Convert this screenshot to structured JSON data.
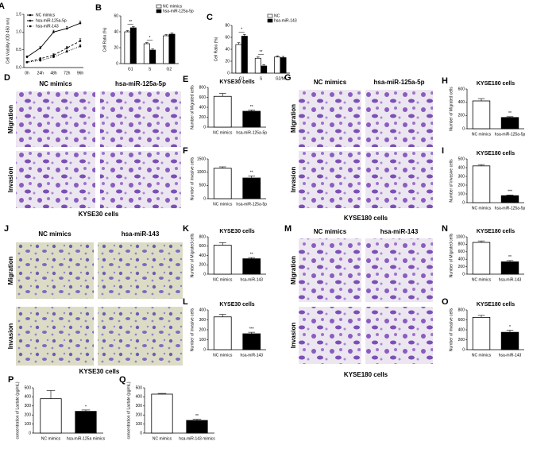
{
  "chart_data": [
    {
      "type": "line",
      "panel": "A",
      "y_label": "Cell Viability (OD 450 nm)",
      "categories": [
        "0h",
        "24h",
        "48h",
        "72h",
        "96h"
      ],
      "ylim": [
        0,
        1.5
      ],
      "yticks": [
        {
          "value": 0,
          "label": "0.0"
        },
        0.5,
        {
          "value": 1,
          "label": "1.0"
        },
        1.5
      ],
      "series": [
        {
          "name": "NC mimics",
          "color": "#000000",
          "dash": "solid",
          "values": [
            0.3,
            0.55,
            1.0,
            1.1,
            1.25
          ],
          "errors": [
            0.03,
            0.04,
            0.05,
            0.05,
            0.06
          ]
        },
        {
          "name": "hsa-miR-125a-5p",
          "color": "#000000",
          "dash": "dashed",
          "values": [
            0.15,
            0.25,
            0.35,
            0.55,
            0.75
          ],
          "errors": [
            0.02,
            0.03,
            0.04,
            0.05,
            0.06
          ]
        },
        {
          "name": "hsa-miR-143",
          "color": "#000000",
          "dash": "dotted",
          "values": [
            0.15,
            0.2,
            0.3,
            0.45,
            0.6
          ],
          "errors": [
            0.02,
            0.03,
            0.03,
            0.04,
            0.05
          ]
        }
      ]
    },
    {
      "type": "bar",
      "panel": "B",
      "y_label": "Cell Ratio (%)",
      "categories": [
        "G1",
        "S",
        "G2"
      ],
      "ylim": [
        0,
        60
      ],
      "yticks": [
        0,
        20,
        40,
        60
      ],
      "annotations": [
        "**",
        "*",
        null
      ],
      "series": [
        {
          "name": "NC mimics",
          "color": "#ffffff",
          "values": [
            40,
            25,
            35
          ],
          "errors": [
            1.5,
            1.5,
            1.5
          ]
        },
        {
          "name": "hsa-miR-125a-5p",
          "color": "#000000",
          "values": [
            45,
            17,
            37
          ],
          "errors": [
            1.5,
            1.5,
            1.5
          ]
        }
      ]
    },
    {
      "type": "bar",
      "panel": "C",
      "y_label": "Cell Ratio (%)",
      "categories": [
        "G1",
        "S",
        "G2/M"
      ],
      "ylim": [
        0,
        80
      ],
      "yticks": [
        0,
        20,
        40,
        60,
        80
      ],
      "annotations": [
        "*",
        "**",
        null
      ],
      "series": [
        {
          "name": "NC",
          "color": "#ffffff",
          "values": [
            48,
            25,
            27
          ],
          "errors": [
            3,
            2,
            2
          ]
        },
        {
          "name": "hsa-miR-143",
          "color": "#000000",
          "values": [
            62,
            12,
            26
          ],
          "errors": [
            3,
            2,
            2
          ]
        }
      ]
    },
    {
      "type": "bar",
      "panel": "E",
      "title": "KYSE30 cells",
      "y_label": "Number of Migrated cells",
      "categories": [
        "NC mimics",
        "hsa-miR-125a-5p"
      ],
      "ylim": [
        0,
        800
      ],
      "yticks": [
        0,
        200,
        400,
        600,
        800
      ],
      "annotations": [
        null,
        "**"
      ],
      "colors": [
        "#ffffff",
        "#000000"
      ],
      "values": [
        620,
        320
      ],
      "errors": [
        60,
        25
      ]
    },
    {
      "type": "bar",
      "panel": "F",
      "y_label": "Number of invasive cells",
      "categories": [
        "NC mimics",
        "hsa-miR-125a-5p"
      ],
      "ylim": [
        0,
        1500
      ],
      "yticks": [
        0,
        500,
        1000,
        1500
      ],
      "annotations": [
        null,
        "**"
      ],
      "colors": [
        "#ffffff",
        "#000000"
      ],
      "values": [
        1150,
        780
      ],
      "errors": [
        50,
        80
      ]
    },
    {
      "type": "bar",
      "panel": "H",
      "title": "KYSE180 cells",
      "y_label": "Number of Migrated cells",
      "categories": [
        "NC mimics",
        "hsa-miR-125a-5p"
      ],
      "ylim": [
        0,
        600
      ],
      "yticks": [
        0,
        200,
        400,
        600
      ],
      "annotations": [
        null,
        "**"
      ],
      "colors": [
        "#ffffff",
        "#000000"
      ],
      "values": [
        420,
        170
      ],
      "errors": [
        35,
        12
      ]
    },
    {
      "type": "bar",
      "panel": "I",
      "title": "KYSE180 cells",
      "y_label": "Number of invasive cells",
      "categories": [
        "NC mimics",
        "hsa-miR-125a-5p"
      ],
      "ylim": [
        0,
        500
      ],
      "yticks": [
        0,
        100,
        200,
        300,
        400,
        500
      ],
      "annotations": [
        null,
        "***"
      ],
      "colors": [
        "#ffffff",
        "#000000"
      ],
      "values": [
        420,
        80
      ],
      "errors": [
        15,
        8
      ]
    },
    {
      "type": "bar",
      "panel": "K",
      "title": "KYSE30 cells",
      "y_label": "Number of Migrated cells",
      "categories": [
        "NC mimics",
        "hsa-miR-143"
      ],
      "ylim": [
        0,
        800
      ],
      "yticks": [
        0,
        200,
        400,
        600,
        800
      ],
      "annotations": [
        null,
        "**"
      ],
      "colors": [
        "#ffffff",
        "#000000"
      ],
      "values": [
        620,
        330
      ],
      "errors": [
        55,
        25
      ]
    },
    {
      "type": "bar",
      "panel": "L",
      "title": "KYSE30 cells",
      "y_label": "Number of invasive cells",
      "categories": [
        "NC mimics",
        "hsa-miR-143"
      ],
      "ylim": [
        0,
        400
      ],
      "yticks": [
        0,
        100,
        200,
        300,
        400
      ],
      "annotations": [
        null,
        "***"
      ],
      "colors": [
        "#ffffff",
        "#000000"
      ],
      "values": [
        330,
        160
      ],
      "errors": [
        25,
        15
      ]
    },
    {
      "type": "bar",
      "panel": "N",
      "title": "KYSE180 cells",
      "y_label": "Number of Migrated cells",
      "categories": [
        "NC mimics",
        "hsa-miR-143"
      ],
      "ylim": [
        0,
        1000
      ],
      "yticks": [
        0,
        200,
        400,
        600,
        800,
        1000
      ],
      "annotations": [
        null,
        "**"
      ],
      "colors": [
        "#ffffff",
        "#000000"
      ],
      "values": [
        850,
        330
      ],
      "errors": [
        40,
        35
      ]
    },
    {
      "type": "bar",
      "panel": "O",
      "title": "KYSE180 cells",
      "y_label": "Number of invasive cells",
      "categories": [
        "NC mimics",
        "hsa-miR-143"
      ],
      "ylim": [
        0,
        800
      ],
      "yticks": [
        0,
        200,
        400,
        600,
        800
      ],
      "annotations": [
        null,
        "*"
      ],
      "colors": [
        "#ffffff",
        "#000000"
      ],
      "values": [
        650,
        350
      ],
      "errors": [
        40,
        40
      ]
    },
    {
      "type": "bar",
      "panel": "P",
      "y_label": "concentration of Lactate (pg/mL)",
      "categories": [
        "NC mimics",
        "hsa-miR-125a mimics"
      ],
      "ylim": [
        0,
        500
      ],
      "yticks": [
        0,
        100,
        200,
        300,
        400,
        500
      ],
      "annotations": [
        null,
        "*"
      ],
      "colors": [
        "#ffffff",
        "#000000"
      ],
      "values": [
        380,
        240
      ],
      "errors": [
        90,
        15
      ]
    },
    {
      "type": "bar",
      "panel": "Q",
      "y_label": "concentration of Lactate (pg/mL)",
      "categories": [
        "NC mimics",
        "hsa-miR-143 mimics"
      ],
      "ylim": [
        0,
        500
      ],
      "yticks": [
        0,
        100,
        200,
        300,
        400,
        500
      ],
      "annotations": [
        null,
        "**"
      ],
      "colors": [
        "#ffffff",
        "#000000"
      ],
      "values": [
        430,
        140
      ],
      "errors": [
        8,
        12
      ]
    }
  ],
  "micrographs": [
    {
      "panel": "D",
      "columns": [
        "NC mimics",
        "hsa-miR-125a-5p"
      ],
      "rows": [
        "Migration",
        "Invasion"
      ],
      "caption": "KYSE30 cells"
    },
    {
      "panel": "G",
      "columns": [
        "NC mimics",
        "hsa-miR-125a-5p"
      ],
      "rows": [
        "Migration",
        "Invasion"
      ],
      "caption": "KYSE180 cells"
    },
    {
      "panel": "J",
      "columns": [
        "NC mimics",
        "hsa-miR-143"
      ],
      "rows": [
        "Migration",
        "Invasion"
      ],
      "caption": "KYSE30 cells"
    },
    {
      "panel": "M",
      "columns": [
        "NC mimics",
        "hsa-miR-143"
      ],
      "rows": [
        "Migration",
        "Invasion"
      ],
      "caption": "KYSE180 cells"
    }
  ]
}
